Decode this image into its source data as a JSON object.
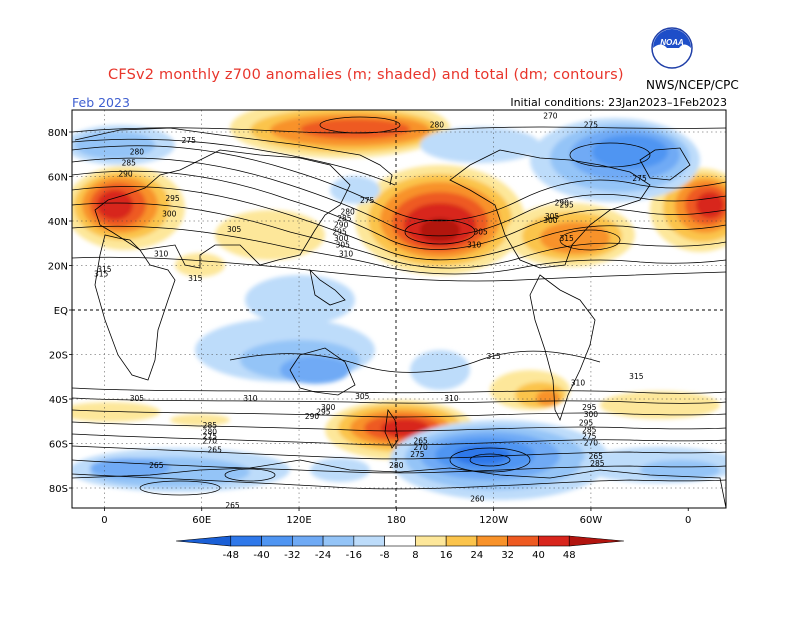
{
  "title": "CFSv2 monthly z700 anomalies (m; shaded) and total (dm; contours)",
  "month": "Feb 2023",
  "initial_conditions": "Initial conditions: 23Jan2023–1Feb2023",
  "agency": "NWS/NCEP/CPC",
  "logo_text": "NOAA",
  "lat_labels": [
    "80N",
    "60N",
    "40N",
    "20N",
    "EQ",
    "20S",
    "40S",
    "60S",
    "80S"
  ],
  "lon_labels": [
    "0",
    "60E",
    "120E",
    "180",
    "120W",
    "60W",
    "0"
  ],
  "colorbar": {
    "labels": [
      "-48",
      "-40",
      "-32",
      "-24",
      "-16",
      "-8",
      "8",
      "16",
      "24",
      "32",
      "40",
      "48"
    ],
    "colors": [
      "#1a5fd6",
      "#2f78ea",
      "#4f95f2",
      "#6faaf5",
      "#94c4f7",
      "#bddcfa",
      "#ffffff",
      "#fde79a",
      "#fbc44c",
      "#f8922a",
      "#ee5a21",
      "#d8251d",
      "#b2140f"
    ]
  },
  "contour_labels": [
    {
      "text": "280",
      "lon": 205,
      "lat": 82
    },
    {
      "text": "275",
      "lon": 300,
      "lat": 82
    },
    {
      "text": "270",
      "lon": 275,
      "lat": 86
    },
    {
      "text": "275",
      "lon": 330,
      "lat": 58
    },
    {
      "text": "275",
      "lon": 52,
      "lat": 75
    },
    {
      "text": "280",
      "lon": 20,
      "lat": 70
    },
    {
      "text": "285",
      "lon": 15,
      "lat": 65
    },
    {
      "text": "290",
      "lon": 13,
      "lat": 60
    },
    {
      "text": "295",
      "lon": 42,
      "lat": 49
    },
    {
      "text": "300",
      "lon": 40,
      "lat": 42
    },
    {
      "text": "305",
      "lon": 80,
      "lat": 35
    },
    {
      "text": "310",
      "lon": 35,
      "lat": 24
    },
    {
      "text": "315",
      "lon": 0,
      "lat": 17
    },
    {
      "text": "315",
      "lon": 56,
      "lat": 13
    },
    {
      "text": "275",
      "lon": 162,
      "lat": 48
    },
    {
      "text": "280",
      "lon": 150,
      "lat": 43
    },
    {
      "text": "285",
      "lon": 148,
      "lat": 40
    },
    {
      "text": "290",
      "lon": 146,
      "lat": 37
    },
    {
      "text": "295",
      "lon": 145,
      "lat": 34
    },
    {
      "text": "300",
      "lon": 146,
      "lat": 31
    },
    {
      "text": "305",
      "lon": 147,
      "lat": 28
    },
    {
      "text": "310",
      "lon": 149,
      "lat": 24
    },
    {
      "text": "305",
      "lon": 232,
      "lat": 34
    },
    {
      "text": "310",
      "lon": 228,
      "lat": 28
    },
    {
      "text": "315",
      "lon": 285,
      "lat": 31
    },
    {
      "text": "300",
      "lon": 275,
      "lat": 39
    },
    {
      "text": "305",
      "lon": 276,
      "lat": 41
    },
    {
      "text": "295",
      "lon": 285,
      "lat": 46
    },
    {
      "text": "290",
      "lon": 282,
      "lat": 47
    },
    {
      "text": "315",
      "lon": 358,
      "lat": 15
    },
    {
      "text": "315",
      "lon": 240,
      "lat": -22
    },
    {
      "text": "310",
      "lon": 292,
      "lat": -34
    },
    {
      "text": "315",
      "lon": 328,
      "lat": -31
    },
    {
      "text": "305",
      "lon": 20,
      "lat": -41
    },
    {
      "text": "310",
      "lon": 90,
      "lat": -41
    },
    {
      "text": "305",
      "lon": 159,
      "lat": -40
    },
    {
      "text": "310",
      "lon": 214,
      "lat": -41
    },
    {
      "text": "300",
      "lon": 138,
      "lat": -45
    },
    {
      "text": "295",
      "lon": 135,
      "lat": -47
    },
    {
      "text": "290",
      "lon": 128,
      "lat": -49
    },
    {
      "text": "285",
      "lon": 65,
      "lat": -53
    },
    {
      "text": "280",
      "lon": 65,
      "lat": -56
    },
    {
      "text": "275",
      "lon": 65,
      "lat": -58
    },
    {
      "text": "270",
      "lon": 65,
      "lat": -60
    },
    {
      "text": "265",
      "lon": 68,
      "lat": -64
    },
    {
      "text": "265",
      "lon": 32,
      "lat": -71
    },
    {
      "text": "265",
      "lon": 79,
      "lat": -89
    },
    {
      "text": "280",
      "lon": 180,
      "lat": -71
    },
    {
      "text": "260",
      "lon": 230,
      "lat": -86
    },
    {
      "text": "265",
      "lon": 195,
      "lat": -60
    },
    {
      "text": "270",
      "lon": 195,
      "lat": -63
    },
    {
      "text": "275",
      "lon": 193,
      "lat": -66
    },
    {
      "text": "295",
      "lon": 299,
      "lat": -45
    },
    {
      "text": "300",
      "lon": 300,
      "lat": -48
    },
    {
      "text": "295",
      "lon": 297,
      "lat": -52
    },
    {
      "text": "285",
      "lon": 299,
      "lat": -55
    },
    {
      "text": "275",
      "lon": 299,
      "lat": -58
    },
    {
      "text": "270",
      "lon": 300,
      "lat": -61
    },
    {
      "text": "265",
      "lon": 303,
      "lat": -67
    },
    {
      "text": "285",
      "lon": 304,
      "lat": -70
    }
  ]
}
